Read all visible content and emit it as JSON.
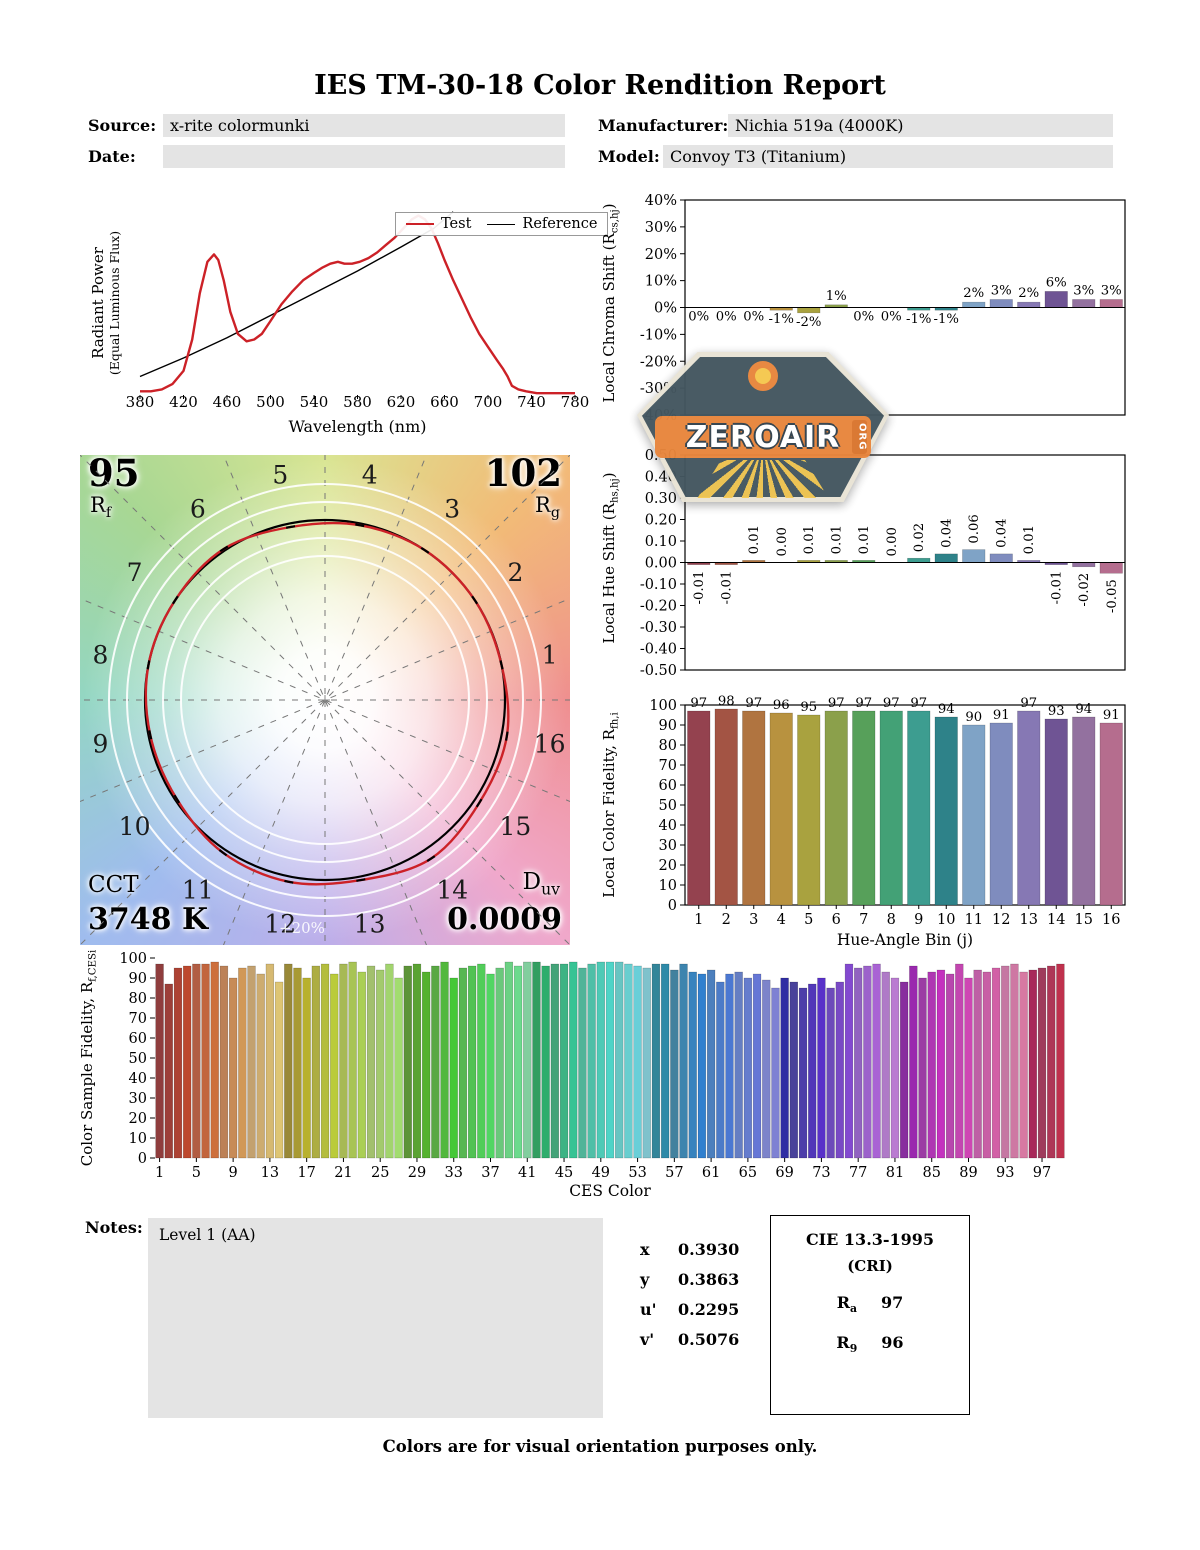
{
  "title": "IES TM-30-18 Color Rendition Report",
  "header": {
    "source_label": "Source:",
    "source_value": "x-rite colormunki",
    "manufacturer_label": "Manufacturer:",
    "manufacturer_value": "Nichia 519a (4000K)",
    "date_label": "Date:",
    "date_value": "",
    "model_label": "Model:",
    "model_value": "Convoy T3 (Titanium)"
  },
  "watermark": {
    "name": "ZEROAIR",
    "org": "ORG"
  },
  "cvg": {
    "rf_value": "95",
    "rf_label_main": "R",
    "rf_label_sub": "f",
    "rg_value": "102",
    "rg_label_main": "R",
    "rg_label_sub": "g",
    "cct_label": "CCT",
    "cct_value": "3748 K",
    "duv_label_main": "D",
    "duv_label_sub": "uv",
    "duv_value": "0.0009",
    "ring_label": "+20%",
    "bin_labels": [
      "1",
      "2",
      "3",
      "4",
      "5",
      "6",
      "7",
      "8",
      "9",
      "10",
      "11",
      "12",
      "13",
      "14",
      "15",
      "16"
    ]
  },
  "notes": {
    "label": "Notes:",
    "value": "Level 1 (AA)"
  },
  "chromaticity": {
    "rows": [
      {
        "label": "x",
        "value": "0.3930"
      },
      {
        "label": "y",
        "value": "0.3863"
      },
      {
        "label": "u'",
        "value": "0.2295"
      },
      {
        "label": "v'",
        "value": "0.5076"
      }
    ]
  },
  "cie": {
    "title": "CIE 13.3-1995",
    "subtitle": "(CRI)",
    "rows": [
      {
        "label_main": "R",
        "label_sub": "a",
        "value": "97"
      },
      {
        "label_main": "R",
        "label_sub": "9",
        "value": "96"
      }
    ]
  },
  "footer": "Colors are for visual orientation purposes only.",
  "hue_bin_colors": [
    "#94424f",
    "#a35444",
    "#b07440",
    "#b8923f",
    "#a9a23f",
    "#8ba04b",
    "#57a05a",
    "#43a176",
    "#3d9d90",
    "#2e8289",
    "#7fa3c6",
    "#7f8cbe",
    "#8678b4",
    "#6f5494",
    "#93719f",
    "#b56d8e"
  ],
  "chart_data": [
    {
      "name": "spectral_power_distribution",
      "type": "line",
      "xlabel": "Wavelength (nm)",
      "ylabel_line1": "Radiant Power",
      "ylabel_line2": "(Equal Luminous Flux)",
      "xlim": [
        380,
        780
      ],
      "xticks": [
        380,
        420,
        460,
        500,
        540,
        580,
        620,
        660,
        700,
        740,
        780
      ],
      "legend_position": "upper right",
      "series": [
        {
          "name": "Test",
          "color": "#cc2127",
          "x": [
            380,
            390,
            400,
            410,
            420,
            428,
            435,
            442,
            448,
            452,
            457,
            463,
            470,
            478,
            485,
            492,
            500,
            510,
            520,
            530,
            540,
            548,
            555,
            562,
            568,
            575,
            582,
            590,
            598,
            606,
            614,
            622,
            630,
            636,
            642,
            648,
            654,
            660,
            668,
            676,
            684,
            692,
            700,
            708,
            714,
            718,
            722,
            728,
            735,
            745,
            760,
            780
          ],
          "y": [
            0.02,
            0.02,
            0.03,
            0.06,
            0.13,
            0.3,
            0.55,
            0.72,
            0.76,
            0.73,
            0.62,
            0.45,
            0.33,
            0.29,
            0.3,
            0.33,
            0.4,
            0.49,
            0.56,
            0.62,
            0.66,
            0.69,
            0.71,
            0.72,
            0.71,
            0.71,
            0.72,
            0.74,
            0.77,
            0.81,
            0.85,
            0.9,
            0.95,
            0.97,
            0.95,
            0.9,
            0.82,
            0.73,
            0.62,
            0.52,
            0.42,
            0.33,
            0.26,
            0.19,
            0.14,
            0.1,
            0.05,
            0.03,
            0.02,
            0.01,
            0.01,
            0.01
          ]
        },
        {
          "name": "Reference",
          "color": "#000000",
          "x": [
            380,
            420,
            460,
            500,
            540,
            580,
            620,
            650,
            668
          ],
          "y": [
            0.1,
            0.2,
            0.31,
            0.43,
            0.55,
            0.67,
            0.8,
            0.9,
            0.99
          ]
        }
      ]
    },
    {
      "name": "local_chroma_shift",
      "type": "bar",
      "ylabel": "Local Chroma Shift (Rcs,hj)",
      "ylabel_parts": {
        "pre": "Local Chroma Shift (R",
        "sub": "cs,hj",
        "post": ")"
      },
      "categories": [
        1,
        2,
        3,
        4,
        5,
        6,
        7,
        8,
        9,
        10,
        11,
        12,
        13,
        14,
        15,
        16
      ],
      "values": [
        0,
        0,
        0,
        -1,
        -2,
        1,
        0,
        0,
        -1,
        -1,
        2,
        3,
        2,
        6,
        3,
        3
      ],
      "bar_labels": [
        "0%",
        "0%",
        "0%",
        "-1%",
        "-2%",
        "1%",
        "0%",
        "0%",
        "-1%",
        "-1%",
        "2%",
        "3%",
        "2%",
        "6%",
        "3%",
        "3%"
      ],
      "ylim": [
        -40,
        40
      ],
      "ytick_values": [
        40,
        30,
        20,
        10,
        0,
        -10,
        -20,
        -30,
        -40
      ],
      "ytick_labels": [
        "40%",
        "30%",
        "20%",
        "10%",
        "0%",
        "-10%",
        "-20%",
        "-30%",
        "-40%"
      ]
    },
    {
      "name": "local_hue_shift",
      "type": "bar",
      "ylabel": "Local Hue Shift (Rhs,hj)",
      "ylabel_parts": {
        "pre": "Local Hue Shift (R",
        "sub": "hs,hj",
        "post": ")"
      },
      "categories": [
        1,
        2,
        3,
        4,
        5,
        6,
        7,
        8,
        9,
        10,
        11,
        12,
        13,
        14,
        15,
        16
      ],
      "values": [
        -0.01,
        -0.01,
        0.01,
        0.0,
        0.01,
        0.01,
        0.01,
        0.0,
        0.02,
        0.04,
        0.06,
        0.04,
        0.01,
        -0.01,
        -0.02,
        -0.05
      ],
      "bar_labels": [
        "-0.01",
        "-0.01",
        "0.01",
        "0.00",
        "0.01",
        "0.01",
        "0.01",
        "0.00",
        "0.02",
        "0.04",
        "0.06",
        "0.04",
        "0.01",
        "-0.01",
        "-0.02",
        "-0.05"
      ],
      "ylim": [
        -0.5,
        0.5
      ],
      "ytick_values": [
        0.5,
        0.4,
        0.3,
        0.2,
        0.1,
        0,
        -0.1,
        -0.2,
        -0.3,
        -0.4,
        -0.5
      ],
      "ytick_labels": [
        "0.50",
        "0.40",
        "0.30",
        "0.20",
        "0.10",
        "0.00",
        "-0.10",
        "-0.20",
        "-0.30",
        "-0.40",
        "-0.50"
      ]
    },
    {
      "name": "local_color_fidelity",
      "type": "bar",
      "ylabel": "Local Color Fidelity, Rfh,i",
      "ylabel_parts": {
        "pre": "Local Color Fidelity, R",
        "sub": "fh,i",
        "post": ""
      },
      "xlabel": "Hue-Angle Bin (j)",
      "categories": [
        1,
        2,
        3,
        4,
        5,
        6,
        7,
        8,
        9,
        10,
        11,
        12,
        13,
        14,
        15,
        16
      ],
      "values": [
        97,
        98,
        97,
        96,
        95,
        97,
        97,
        97,
        97,
        94,
        90,
        91,
        97,
        93,
        94,
        91
      ],
      "bar_labels": [
        "97",
        "98",
        "97",
        "96",
        "95",
        "97",
        "97",
        "97",
        "97",
        "94",
        "90",
        "91",
        "97",
        "93",
        "94",
        "91"
      ],
      "ylim": [
        0,
        100
      ],
      "ytick_values": [
        100,
        90,
        80,
        70,
        60,
        50,
        40,
        30,
        20,
        10,
        0
      ],
      "ytick_labels": [
        "100",
        "90",
        "80",
        "70",
        "60",
        "50",
        "40",
        "30",
        "20",
        "10",
        "0"
      ]
    },
    {
      "name": "color_sample_fidelity",
      "type": "bar",
      "ylabel": "Color Sample Fidelity, Rf,CESi",
      "ylabel_parts": {
        "pre": "Color Sample Fidelity, R",
        "sub": "f,CESi",
        "post": ""
      },
      "xlabel": "CES Color",
      "xtick_values": [
        1,
        5,
        9,
        13,
        17,
        21,
        25,
        29,
        33,
        37,
        41,
        45,
        49,
        53,
        57,
        61,
        65,
        69,
        73,
        77,
        81,
        85,
        89,
        93,
        97
      ],
      "values": [
        97,
        87,
        95,
        96,
        97,
        97,
        98,
        96,
        90,
        95,
        96,
        92,
        97,
        88,
        97,
        95,
        90,
        96,
        97,
        92,
        97,
        98,
        93,
        96,
        94,
        97,
        90,
        96,
        97,
        93,
        96,
        98,
        90,
        95,
        96,
        97,
        92,
        95,
        98,
        96,
        98,
        98,
        96,
        97,
        97,
        98,
        95,
        97,
        98,
        98,
        98,
        97,
        96,
        95,
        97,
        97,
        94,
        97,
        93,
        92,
        94,
        88,
        92,
        93,
        90,
        92,
        89,
        85,
        90,
        88,
        85,
        87,
        90,
        85,
        88,
        97,
        95,
        96,
        97,
        93,
        90,
        88,
        96,
        90,
        93,
        94,
        92,
        97,
        90,
        94,
        93,
        95,
        96,
        97,
        93,
        94,
        95,
        96,
        97
      ],
      "ylim": [
        0,
        100
      ],
      "ytick_values": [
        100,
        90,
        80,
        70,
        60,
        50,
        40,
        30,
        20,
        10,
        0
      ],
      "ytick_labels": [
        "100",
        "90",
        "80",
        "70",
        "60",
        "50",
        "40",
        "30",
        "20",
        "10",
        "0"
      ]
    }
  ]
}
